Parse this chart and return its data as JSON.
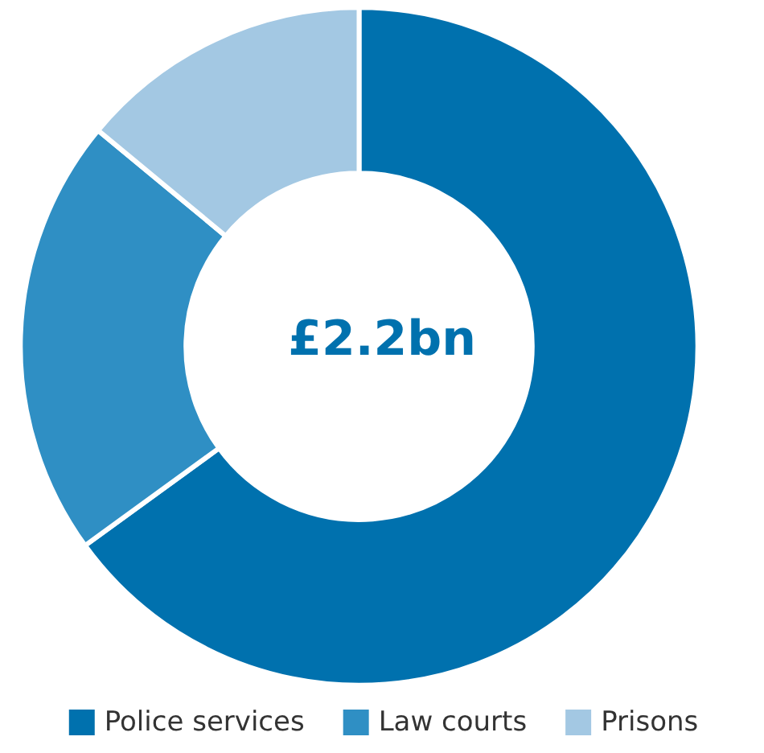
{
  "chart_data": {
    "type": "donut",
    "categories": [
      "Police services",
      "Law courts",
      "Prisons"
    ],
    "values": [
      65,
      21,
      14
    ],
    "colors": [
      "#0071ae",
      "#2f8fc4",
      "#a3c8e3"
    ],
    "annotations": [
      "£2.2bn"
    ],
    "legend": "bottom"
  }
}
